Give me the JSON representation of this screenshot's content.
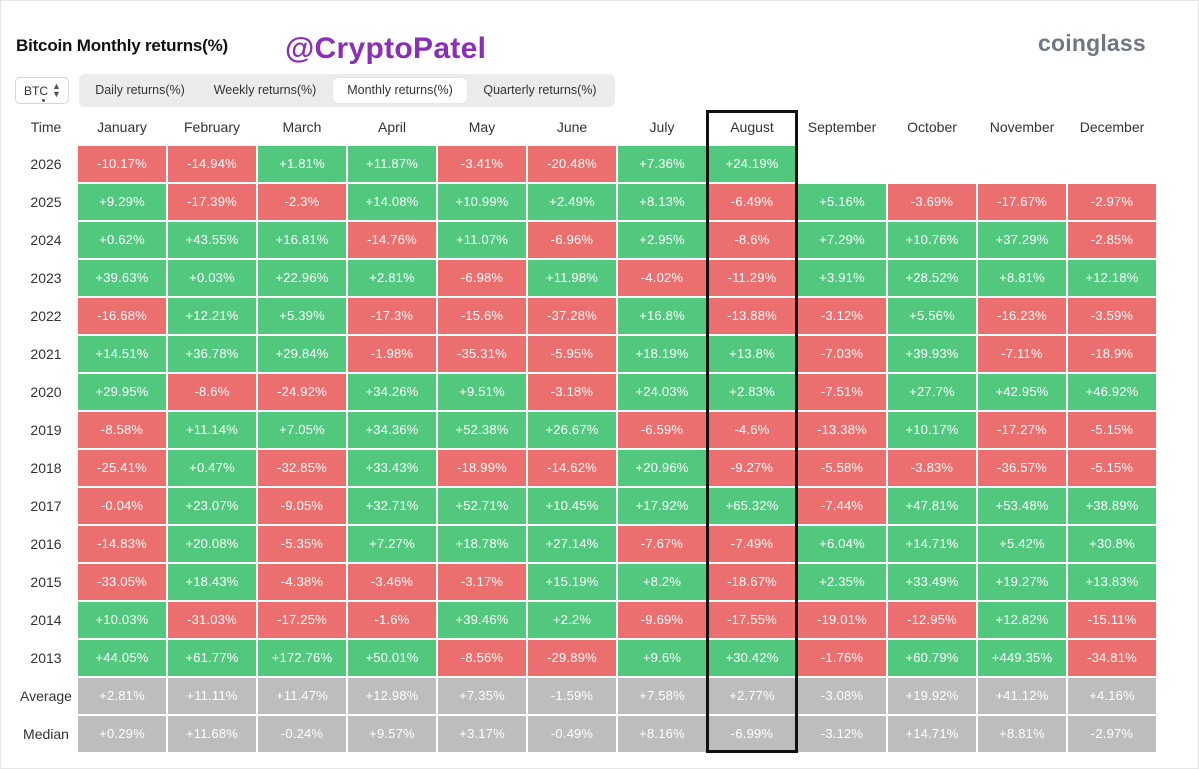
{
  "header": {
    "title": "Bitcoin Monthly returns(%)",
    "watermark": "@CryptoPatel",
    "brand": "coinglass"
  },
  "controls": {
    "asset_select": {
      "value": "BTC",
      "icon": "up-down-chevron-icon"
    },
    "tabs": [
      {
        "label": "Daily returns(%)",
        "active": false
      },
      {
        "label": "Weekly returns(%)",
        "active": false
      },
      {
        "label": "Monthly returns(%)",
        "active": true
      },
      {
        "label": "Quarterly returns(%)",
        "active": false
      }
    ]
  },
  "colors": {
    "positive": "#52c87f",
    "negative": "#ec6f6f",
    "summary": "#bdbdbd",
    "highlight_border": "#111111",
    "watermark": "#8b2fb8"
  },
  "chart_data": {
    "type": "table",
    "title": "Bitcoin Monthly returns(%)",
    "row_header_label": "Time",
    "columns": [
      "January",
      "February",
      "March",
      "April",
      "May",
      "June",
      "July",
      "August",
      "September",
      "October",
      "November",
      "December"
    ],
    "highlighted_column": "August",
    "rows": [
      {
        "label": "2026",
        "values": [
          "-10.17%",
          "-14.94%",
          "+1.81%",
          "+11.87%",
          "-3.41%",
          "-20.48%",
          "+7.36%",
          "+24.19%",
          "",
          "",
          "",
          ""
        ]
      },
      {
        "label": "2025",
        "values": [
          "+9.29%",
          "-17.39%",
          "-2.3%",
          "+14.08%",
          "+10.99%",
          "+2.49%",
          "+8.13%",
          "-6.49%",
          "+5.16%",
          "-3.69%",
          "-17.67%",
          "-2.97%"
        ]
      },
      {
        "label": "2024",
        "values": [
          "+0.62%",
          "+43.55%",
          "+16.81%",
          "-14.76%",
          "+11.07%",
          "-6.96%",
          "+2.95%",
          "-8.6%",
          "+7.29%",
          "+10.76%",
          "+37.29%",
          "-2.85%"
        ]
      },
      {
        "label": "2023",
        "values": [
          "+39.63%",
          "+0.03%",
          "+22.96%",
          "+2.81%",
          "-6.98%",
          "+11.98%",
          "-4.02%",
          "-11.29%",
          "+3.91%",
          "+28.52%",
          "+8.81%",
          "+12.18%"
        ]
      },
      {
        "label": "2022",
        "values": [
          "-16.68%",
          "+12.21%",
          "+5.39%",
          "-17.3%",
          "-15.6%",
          "-37.28%",
          "+16.8%",
          "-13.88%",
          "-3.12%",
          "+5.56%",
          "-16.23%",
          "-3.59%"
        ]
      },
      {
        "label": "2021",
        "values": [
          "+14.51%",
          "+36.78%",
          "+29.84%",
          "-1.98%",
          "-35.31%",
          "-5.95%",
          "+18.19%",
          "+13.8%",
          "-7.03%",
          "+39.93%",
          "-7.11%",
          "-18.9%"
        ]
      },
      {
        "label": "2020",
        "values": [
          "+29.95%",
          "-8.6%",
          "-24.92%",
          "+34.26%",
          "+9.51%",
          "-3.18%",
          "+24.03%",
          "+2.83%",
          "-7.51%",
          "+27.7%",
          "+42.95%",
          "+46.92%"
        ]
      },
      {
        "label": "2019",
        "values": [
          "-8.58%",
          "+11.14%",
          "+7.05%",
          "+34.36%",
          "+52.38%",
          "+26.67%",
          "-6.59%",
          "-4.6%",
          "-13.38%",
          "+10.17%",
          "-17.27%",
          "-5.15%"
        ]
      },
      {
        "label": "2018",
        "values": [
          "-25.41%",
          "+0.47%",
          "-32.85%",
          "+33.43%",
          "-18.99%",
          "-14.62%",
          "+20.96%",
          "-9.27%",
          "-5.58%",
          "-3.83%",
          "-36.57%",
          "-5.15%"
        ]
      },
      {
        "label": "2017",
        "values": [
          "-0.04%",
          "+23.07%",
          "-9.05%",
          "+32.71%",
          "+52.71%",
          "+10.45%",
          "+17.92%",
          "+65.32%",
          "-7.44%",
          "+47.81%",
          "+53.48%",
          "+38.89%"
        ]
      },
      {
        "label": "2016",
        "values": [
          "-14.83%",
          "+20.08%",
          "-5.35%",
          "+7.27%",
          "+18.78%",
          "+27.14%",
          "-7.67%",
          "-7.49%",
          "+6.04%",
          "+14.71%",
          "+5.42%",
          "+30.8%"
        ]
      },
      {
        "label": "2015",
        "values": [
          "-33.05%",
          "+18.43%",
          "-4.38%",
          "-3.46%",
          "-3.17%",
          "+15.19%",
          "+8.2%",
          "-18.67%",
          "+2.35%",
          "+33.49%",
          "+19.27%",
          "+13.83%"
        ]
      },
      {
        "label": "2014",
        "values": [
          "+10.03%",
          "-31.03%",
          "-17.25%",
          "-1.6%",
          "+39.46%",
          "+2.2%",
          "-9.69%",
          "-17.55%",
          "-19.01%",
          "-12.95%",
          "+12.82%",
          "-15.11%"
        ]
      },
      {
        "label": "2013",
        "values": [
          "+44.05%",
          "+61.77%",
          "+172.76%",
          "+50.01%",
          "-8.56%",
          "-29.89%",
          "+9.6%",
          "+30.42%",
          "-1.76%",
          "+60.79%",
          "+449.35%",
          "-34.81%"
        ]
      }
    ],
    "summary_rows": [
      {
        "label": "Average",
        "values": [
          "+2.81%",
          "+11.11%",
          "+11.47%",
          "+12.98%",
          "+7.35%",
          "-1.59%",
          "+7.58%",
          "+2.77%",
          "-3.08%",
          "+19.92%",
          "+41.12%",
          "+4.16%"
        ]
      },
      {
        "label": "Median",
        "values": [
          "+0.29%",
          "+11.68%",
          "-0.24%",
          "+9.57%",
          "+3.17%",
          "-0.49%",
          "+8.16%",
          "-6.99%",
          "-3.12%",
          "+14.71%",
          "+8.81%",
          "-2.97%"
        ]
      }
    ]
  }
}
